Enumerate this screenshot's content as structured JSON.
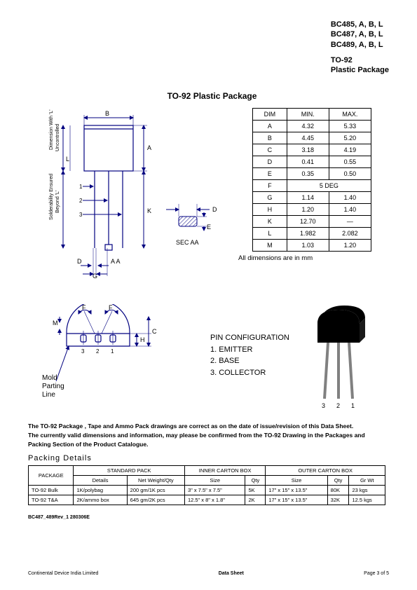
{
  "header": {
    "parts": [
      "BC485, A, B, L",
      "BC487, A, B, L",
      "BC489, A, B, L"
    ],
    "pkg1": "TO-92",
    "pkg2": "Plastic Package"
  },
  "title": "TO-92 Plastic Package",
  "dim_table": {
    "headers": [
      "DIM",
      "MIN.",
      "MAX."
    ],
    "rows": [
      {
        "d": "A",
        "min": "4.32",
        "max": "5.33"
      },
      {
        "d": "B",
        "min": "4.45",
        "max": "5.20"
      },
      {
        "d": "C",
        "min": "3.18",
        "max": "4.19"
      },
      {
        "d": "D",
        "min": "0.41",
        "max": "0.55"
      },
      {
        "d": "E",
        "min": "0.35",
        "max": "0.50"
      },
      {
        "d": "F",
        "span": "5 DEG"
      },
      {
        "d": "G",
        "min": "1.14",
        "max": "1.40"
      },
      {
        "d": "H",
        "min": "1.20",
        "max": "1.40"
      },
      {
        "d": "K",
        "min": "12.70",
        "max": "—"
      },
      {
        "d": "L",
        "min": "1.982",
        "max": "2.082"
      },
      {
        "d": "M",
        "min": "1.03",
        "max": "1.20"
      }
    ],
    "note": "All dimensions are in mm"
  },
  "mold": [
    "Mold",
    "Parting",
    "Line"
  ],
  "pin": {
    "title": "PIN CONFIGURATION",
    "items": [
      "1.   EMITTER",
      "2.   BASE",
      "3.   COLLECTOR"
    ]
  },
  "transistor_labels": [
    "3",
    "2",
    "1"
  ],
  "disclaimer": [
    "The TO-92 Package , Tape and Ammo Pack drawings are correct as on the date of issue/revision of this Data Sheet.",
    "The currently valid dimensions and information, may please be confirmed from the TO-92 Drawing in the Packages and",
    "Packing Section of the Product Catalogue."
  ],
  "packing_title": "Packing Details",
  "pack_table": {
    "group_headers": [
      "PACKAGE",
      "STANDARD PACK",
      "INNER CARTON BOX",
      "OUTER CARTON BOX"
    ],
    "sub_headers": [
      "Details",
      "Net Weight/Qty",
      "Size",
      "Qty",
      "Size",
      "Qty",
      "Gr Wt"
    ],
    "rows": [
      {
        "pkg": "TO-92 Bulk",
        "det": "1K/polybag",
        "wt": "200 gm/1K pcs",
        "isz": "3\" x 7.5\" x 7.5\"",
        "iqty": "5K",
        "osz": "17\" x 15\" x 13.5\"",
        "oqty": "80K",
        "gw": "23 kgs"
      },
      {
        "pkg": "TO-92 T&A",
        "det": "2K/ammo box",
        "wt": "645 gm/2K pcs",
        "isz": "12.5\" x 8\" x 1.8\"",
        "iqty": "2K",
        "osz": "17\" x 15\" x 13.5\"",
        "oqty": "32K",
        "gw": "12.5 kgs"
      }
    ]
  },
  "rev": "BC487_489Rev_1 280306E",
  "footer": {
    "left": "Continental Device India Limited",
    "center": "Data Sheet",
    "right": "Page 3 of 5"
  },
  "svg_labels": {
    "B": "B",
    "A": "A",
    "L": "L",
    "K": "K",
    "D": "D",
    "E": "E",
    "G": "G",
    "F": "F",
    "M": "M",
    "H": "H",
    "C": "C",
    "dim_L": "Dimension With 'L'",
    "uncontrolled": "Uncontrolled",
    "sold": "Solderability Ensured",
    "beyond": "Beyond 'L'",
    "sec": "SEC  AA",
    "pins": [
      "1",
      "2",
      "3"
    ],
    "bottom": [
      "3",
      "2",
      "1"
    ]
  },
  "colors": {
    "line": "#000080",
    "text": "#000000",
    "hatch": "#000080"
  }
}
